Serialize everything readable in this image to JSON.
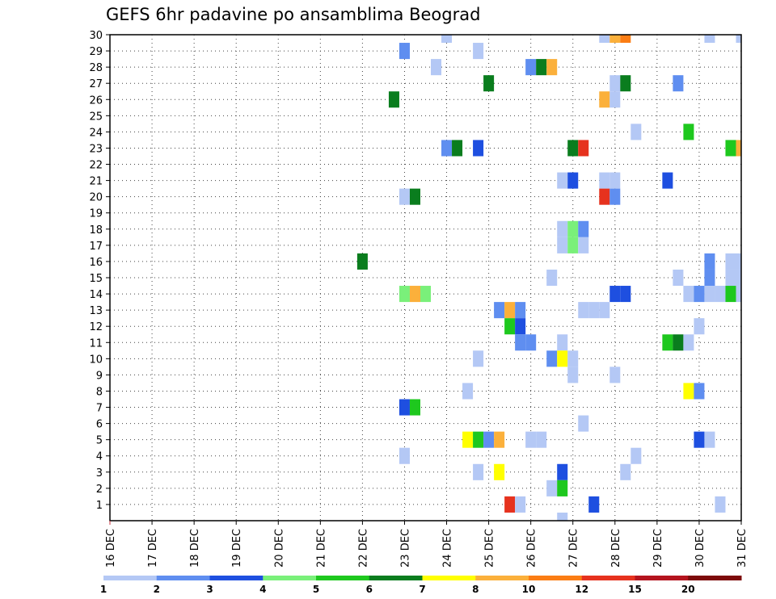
{
  "chart_data": {
    "type": "heatmap",
    "title": "GEFS 6hr padavine po ansamblima Beograd",
    "x_tick_labels": [
      "16 DEC",
      "17 DEC",
      "18 DEC",
      "19 DEC",
      "20 DEC",
      "21 DEC",
      "22 DEC",
      "23 DEC",
      "24 DEC",
      "25 DEC",
      "26 DEC",
      "27 DEC",
      "28 DEC",
      "29 DEC",
      "30 DEC",
      "31 DEC"
    ],
    "y_tick_labels": [
      "1",
      "2",
      "3",
      "4",
      "5",
      "6",
      "7",
      "8",
      "9",
      "10",
      "11",
      "12",
      "13",
      "14",
      "15",
      "16",
      "17",
      "18",
      "19",
      "20",
      "21",
      "22",
      "23",
      "24",
      "25",
      "26",
      "27",
      "28",
      "29",
      "30"
    ],
    "x_unit": "6-hour step",
    "x_range": [
      0,
      60
    ],
    "y_range": [
      0,
      30
    ],
    "grid": true,
    "colorbar": {
      "labels": [
        "1",
        "2",
        "3",
        "4",
        "5",
        "6",
        "7",
        "8",
        "10",
        "12",
        "15",
        "20"
      ],
      "colors": [
        "#b4c8f5",
        "#5f8ef0",
        "#1e4fe0",
        "#7af07a",
        "#1ec81e",
        "#0a7d1e",
        "#ffff00",
        "#fbb03b",
        "#fb7d14",
        "#e6321e",
        "#b4141e",
        "#7d0a0a"
      ]
    },
    "cells": [
      {
        "member": 30,
        "step": 32,
        "cat": 1
      },
      {
        "member": 30,
        "step": 47,
        "cat": 1
      },
      {
        "member": 30,
        "step": 48,
        "cat": 8
      },
      {
        "member": 30,
        "step": 49,
        "cat": 9
      },
      {
        "member": 30,
        "step": 57,
        "cat": 1
      },
      {
        "member": 30,
        "step": 60,
        "cat": 1
      },
      {
        "member": 29,
        "step": 28,
        "cat": 2
      },
      {
        "member": 29,
        "step": 35,
        "cat": 1
      },
      {
        "member": 28,
        "step": 31,
        "cat": 1
      },
      {
        "member": 28,
        "step": 40,
        "cat": 2
      },
      {
        "member": 28,
        "step": 41,
        "cat": 6
      },
      {
        "member": 28,
        "step": 42,
        "cat": 8
      },
      {
        "member": 27,
        "step": 36,
        "cat": 6
      },
      {
        "member": 27,
        "step": 48,
        "cat": 1
      },
      {
        "member": 27,
        "step": 49,
        "cat": 6
      },
      {
        "member": 27,
        "step": 54,
        "cat": 2
      },
      {
        "member": 26,
        "step": 27,
        "cat": 6
      },
      {
        "member": 26,
        "step": 47,
        "cat": 8
      },
      {
        "member": 26,
        "step": 48,
        "cat": 1
      },
      {
        "member": 24,
        "step": 50,
        "cat": 1
      },
      {
        "member": 24,
        "step": 55,
        "cat": 5
      },
      {
        "member": 23,
        "step": 32,
        "cat": 2
      },
      {
        "member": 23,
        "step": 33,
        "cat": 6
      },
      {
        "member": 23,
        "step": 35,
        "cat": 3
      },
      {
        "member": 23,
        "step": 44,
        "cat": 6
      },
      {
        "member": 23,
        "step": 45,
        "cat": 10
      },
      {
        "member": 23,
        "step": 59,
        "cat": 5
      },
      {
        "member": 23,
        "step": 60,
        "cat": 8
      },
      {
        "member": 21,
        "step": 43,
        "cat": 1
      },
      {
        "member": 21,
        "step": 44,
        "cat": 3
      },
      {
        "member": 21,
        "step": 47,
        "cat": 1
      },
      {
        "member": 21,
        "step": 48,
        "cat": 1
      },
      {
        "member": 21,
        "step": 53,
        "cat": 3
      },
      {
        "member": 20,
        "step": 28,
        "cat": 1
      },
      {
        "member": 20,
        "step": 29,
        "cat": 6
      },
      {
        "member": 20,
        "step": 47,
        "cat": 10
      },
      {
        "member": 20,
        "step": 48,
        "cat": 2
      },
      {
        "member": 18,
        "step": 43,
        "cat": 1
      },
      {
        "member": 18,
        "step": 44,
        "cat": 4
      },
      {
        "member": 18,
        "step": 45,
        "cat": 2
      },
      {
        "member": 17,
        "step": 43,
        "cat": 1
      },
      {
        "member": 17,
        "step": 44,
        "cat": 4
      },
      {
        "member": 17,
        "step": 45,
        "cat": 1
      },
      {
        "member": 16,
        "step": 24,
        "cat": 6
      },
      {
        "member": 16,
        "step": 57,
        "cat": 2
      },
      {
        "member": 16,
        "step": 59,
        "cat": 1
      },
      {
        "member": 16,
        "step": 60,
        "cat": 1
      },
      {
        "member": 15,
        "step": 42,
        "cat": 1
      },
      {
        "member": 15,
        "step": 54,
        "cat": 1
      },
      {
        "member": 15,
        "step": 57,
        "cat": 2
      },
      {
        "member": 15,
        "step": 59,
        "cat": 1
      },
      {
        "member": 15,
        "step": 60,
        "cat": 1
      },
      {
        "member": 14,
        "step": 28,
        "cat": 4
      },
      {
        "member": 14,
        "step": 29,
        "cat": 8
      },
      {
        "member": 14,
        "step": 30,
        "cat": 4
      },
      {
        "member": 14,
        "step": 48,
        "cat": 3
      },
      {
        "member": 14,
        "step": 49,
        "cat": 3
      },
      {
        "member": 14,
        "step": 55,
        "cat": 1
      },
      {
        "member": 14,
        "step": 56,
        "cat": 2
      },
      {
        "member": 14,
        "step": 57,
        "cat": 1
      },
      {
        "member": 14,
        "step": 58,
        "cat": 1
      },
      {
        "member": 14,
        "step": 59,
        "cat": 5
      },
      {
        "member": 14,
        "step": 60,
        "cat": 1
      },
      {
        "member": 13,
        "step": 37,
        "cat": 2
      },
      {
        "member": 13,
        "step": 38,
        "cat": 8
      },
      {
        "member": 13,
        "step": 39,
        "cat": 2
      },
      {
        "member": 13,
        "step": 45,
        "cat": 1
      },
      {
        "member": 13,
        "step": 46,
        "cat": 1
      },
      {
        "member": 13,
        "step": 47,
        "cat": 1
      },
      {
        "member": 12,
        "step": 38,
        "cat": 5
      },
      {
        "member": 12,
        "step": 39,
        "cat": 3
      },
      {
        "member": 12,
        "step": 56,
        "cat": 1
      },
      {
        "member": 11,
        "step": 39,
        "cat": 2
      },
      {
        "member": 11,
        "step": 40,
        "cat": 2
      },
      {
        "member": 11,
        "step": 43,
        "cat": 1
      },
      {
        "member": 11,
        "step": 53,
        "cat": 5
      },
      {
        "member": 11,
        "step": 54,
        "cat": 6
      },
      {
        "member": 11,
        "step": 55,
        "cat": 1
      },
      {
        "member": 10,
        "step": 35,
        "cat": 1
      },
      {
        "member": 10,
        "step": 42,
        "cat": 2
      },
      {
        "member": 10,
        "step": 43,
        "cat": 7
      },
      {
        "member": 10,
        "step": 44,
        "cat": 1
      },
      {
        "member": 9,
        "step": 44,
        "cat": 1
      },
      {
        "member": 9,
        "step": 48,
        "cat": 1
      },
      {
        "member": 8,
        "step": 34,
        "cat": 1
      },
      {
        "member": 8,
        "step": 55,
        "cat": 7
      },
      {
        "member": 8,
        "step": 56,
        "cat": 2
      },
      {
        "member": 7,
        "step": 28,
        "cat": 3
      },
      {
        "member": 7,
        "step": 29,
        "cat": 5
      },
      {
        "member": 6,
        "step": 45,
        "cat": 1
      },
      {
        "member": 5,
        "step": 34,
        "cat": 7
      },
      {
        "member": 5,
        "step": 35,
        "cat": 5
      },
      {
        "member": 5,
        "step": 36,
        "cat": 2
      },
      {
        "member": 5,
        "step": 37,
        "cat": 8
      },
      {
        "member": 5,
        "step": 40,
        "cat": 1
      },
      {
        "member": 5,
        "step": 41,
        "cat": 1
      },
      {
        "member": 5,
        "step": 56,
        "cat": 3
      },
      {
        "member": 5,
        "step": 57,
        "cat": 1
      },
      {
        "member": 4,
        "step": 28,
        "cat": 1
      },
      {
        "member": 4,
        "step": 50,
        "cat": 1
      },
      {
        "member": 3,
        "step": 35,
        "cat": 1
      },
      {
        "member": 3,
        "step": 37,
        "cat": 7
      },
      {
        "member": 3,
        "step": 43,
        "cat": 3
      },
      {
        "member": 3,
        "step": 49,
        "cat": 1
      },
      {
        "member": 2,
        "step": 42,
        "cat": 1
      },
      {
        "member": 2,
        "step": 43,
        "cat": 5
      },
      {
        "member": 1,
        "step": 38,
        "cat": 10
      },
      {
        "member": 1,
        "step": 39,
        "cat": 1
      },
      {
        "member": 1,
        "step": 46,
        "cat": 3
      },
      {
        "member": 1,
        "step": 58,
        "cat": 1
      },
      {
        "member": 0,
        "step": 43,
        "cat": 1
      }
    ]
  }
}
